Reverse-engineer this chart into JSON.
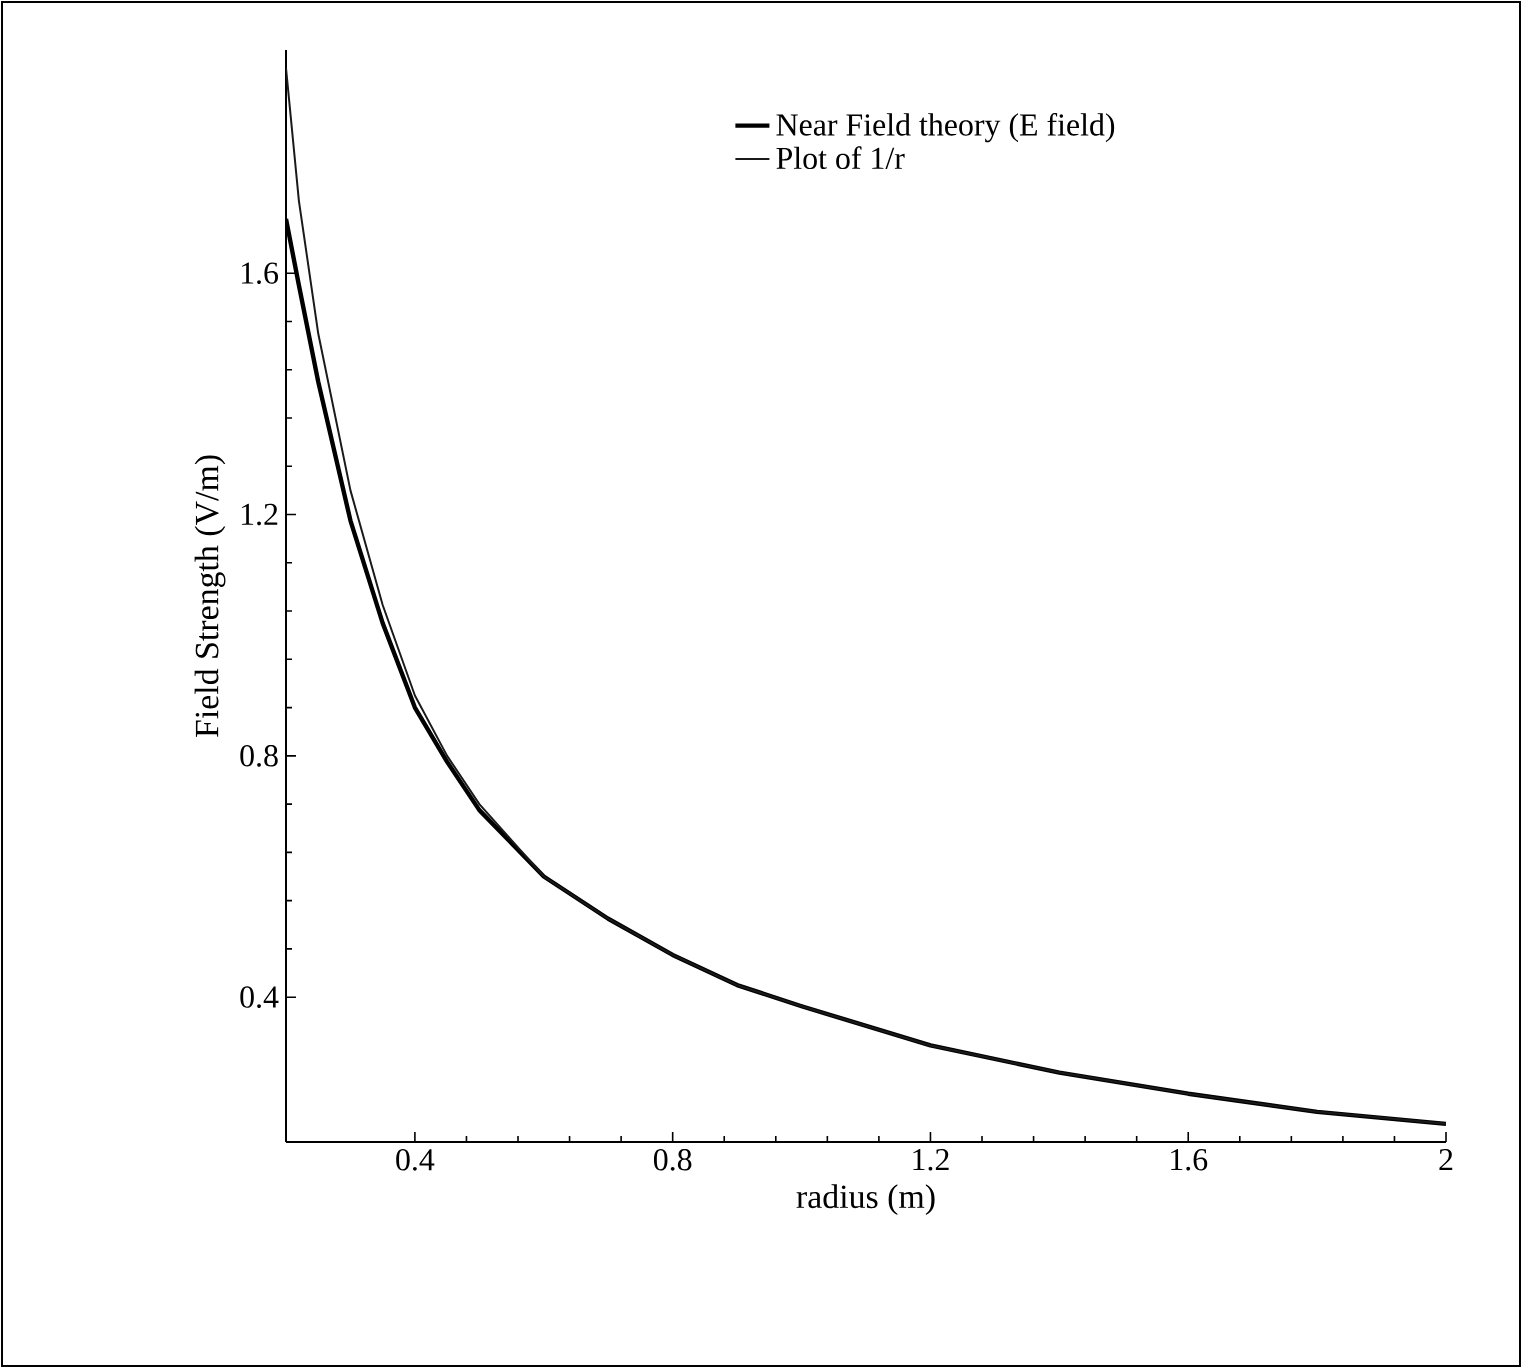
{
  "chart_data": {
    "type": "line",
    "xlabel": "radius (m)",
    "ylabel": "Field Strength (V/m)",
    "xlim": [
      0.2,
      2
    ],
    "ylim": [
      0.16,
      1.97
    ],
    "xticks": [
      0.4,
      0.8,
      1.2,
      1.6,
      2
    ],
    "yticks": [
      0.4,
      0.8,
      1.2,
      1.6
    ],
    "legend": "top",
    "grid": false,
    "marker": "none",
    "series": [
      {
        "name": "Near Field theory (E field)",
        "color": "#000000",
        "line_style": "solid",
        "x": [
          0.2,
          0.22,
          0.25,
          0.3,
          0.35,
          0.4,
          0.45,
          0.5,
          0.6,
          0.7,
          0.8,
          0.9,
          1.0,
          1.2,
          1.4,
          1.6,
          1.8,
          2.0
        ],
        "values": [
          1.69,
          1.58,
          1.42,
          1.19,
          1.02,
          0.88,
          0.79,
          0.71,
          0.6,
          0.53,
          0.47,
          0.42,
          0.385,
          0.32,
          0.275,
          0.24,
          0.21,
          0.19
        ]
      },
      {
        "name": "Plot of 1/r",
        "color": "#1a1a1a",
        "line_style": "solid",
        "x": [
          0.2,
          0.22,
          0.25,
          0.3,
          0.35,
          0.4,
          0.45,
          0.5,
          0.6,
          0.7,
          0.8,
          0.9,
          1.0,
          1.2,
          1.4,
          1.6,
          1.8,
          2.0
        ],
        "values": [
          1.94,
          1.72,
          1.5,
          1.24,
          1.05,
          0.9,
          0.8,
          0.72,
          0.6,
          0.53,
          0.47,
          0.42,
          0.385,
          0.32,
          0.275,
          0.24,
          0.21,
          0.19
        ]
      }
    ]
  }
}
